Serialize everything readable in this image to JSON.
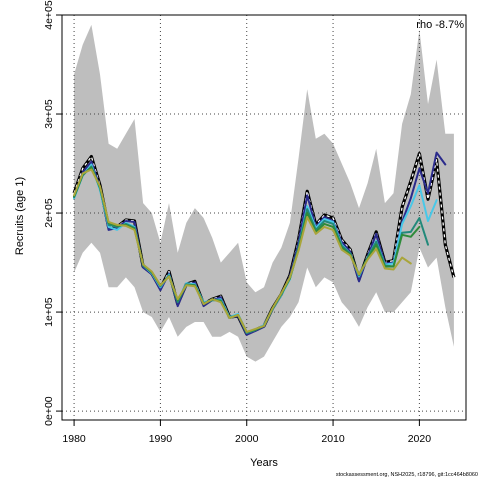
{
  "chart_data": {
    "type": "line",
    "xlabel": "Years",
    "ylabel": "Recruits (age 1)",
    "xlim": [
      1978.6,
      2025.4
    ],
    "ylim": [
      -9000,
      400000
    ],
    "x_ticks": [
      1980,
      1990,
      2000,
      2010,
      2020
    ],
    "x_tick_labels": [
      "1980",
      "1990",
      "2000",
      "2010",
      "2020"
    ],
    "y_ticks": [
      0,
      100000,
      200000,
      300000,
      400000
    ],
    "y_tick_labels": [
      "0e+00",
      "1e+05",
      "2e+05",
      "3e+05",
      "4e+05"
    ],
    "grid": "dotted",
    "annotation": "rho -8.7%",
    "footnote": "stockassessment.org, NSH2025, r18796, git:1cc464b8060",
    "confidence_band": {
      "years": [
        1980,
        1981,
        1982,
        1983,
        1984,
        1985,
        1986,
        1987,
        1988,
        1989,
        1990,
        1991,
        1992,
        1993,
        1994,
        1995,
        1996,
        1997,
        1998,
        1999,
        2000,
        2001,
        2002,
        2003,
        2004,
        2005,
        2006,
        2007,
        2008,
        2009,
        2010,
        2011,
        2012,
        2013,
        2014,
        2015,
        2016,
        2017,
        2018,
        2019,
        2020,
        2021,
        2022,
        2023,
        2024
      ],
      "upper": [
        340000,
        370000,
        390000,
        340000,
        270000,
        265000,
        280000,
        295000,
        210000,
        200000,
        170000,
        210000,
        160000,
        190000,
        205000,
        195000,
        175000,
        150000,
        160000,
        170000,
        130000,
        120000,
        125000,
        150000,
        165000,
        190000,
        255000,
        325000,
        275000,
        280000,
        270000,
        250000,
        230000,
        205000,
        230000,
        265000,
        210000,
        220000,
        290000,
        320000,
        385000,
        310000,
        355000,
        280000,
        280000
      ],
      "lower": [
        140000,
        160000,
        170000,
        160000,
        125000,
        125000,
        135000,
        125000,
        100000,
        95000,
        80000,
        95000,
        75000,
        85000,
        90000,
        90000,
        75000,
        75000,
        80000,
        75000,
        55000,
        50000,
        55000,
        70000,
        85000,
        95000,
        110000,
        145000,
        125000,
        135000,
        130000,
        110000,
        100000,
        85000,
        105000,
        120000,
        100000,
        100000,
        110000,
        120000,
        165000,
        145000,
        155000,
        105000,
        65000
      ]
    },
    "series": [
      {
        "color": "#000000",
        "style": "dashed-with-white-core",
        "role": "estimate",
        "x": [
          1980,
          1981,
          1982,
          1983,
          1984,
          1985,
          1986,
          1987,
          1988,
          1989,
          1990,
          1991,
          1992,
          1993,
          1994,
          1995,
          1996,
          1997,
          1998,
          1999,
          2000,
          2001,
          2002,
          2003,
          2004,
          2005,
          2006,
          2007,
          2008,
          2009,
          2010,
          2011,
          2012,
          2013,
          2014,
          2015,
          2016,
          2017,
          2018,
          2019,
          2020,
          2021,
          2022,
          2023,
          2024
        ],
        "values": [
          220000,
          245000,
          257000,
          228000,
          186000,
          186000,
          193000,
          192000,
          146000,
          139000,
          124000,
          141000,
          108000,
          128000,
          131000,
          108000,
          113000,
          116000,
          95000,
          96000,
          78000,
          82000,
          86000,
          104000,
          118000,
          137000,
          173000,
          222000,
          188000,
          198000,
          195000,
          173000,
          163000,
          133000,
          158000,
          181000,
          150000,
          152000,
          206000,
          232000,
          260000,
          214000,
          254000,
          168000,
          135000
        ]
      },
      {
        "color": "#2b2b8c",
        "style": "solid",
        "x": [
          1980,
          1981,
          1982,
          1983,
          1984,
          1985,
          1986,
          1987,
          1988,
          1989,
          1990,
          1991,
          1992,
          1993,
          1994,
          1995,
          1996,
          1997,
          1998,
          1999,
          2000,
          2001,
          2002,
          2003,
          2004,
          2005,
          2006,
          2007,
          2008,
          2009,
          2010,
          2011,
          2012,
          2013,
          2014,
          2015,
          2016,
          2017,
          2018,
          2019,
          2020,
          2021,
          2022,
          2023
        ],
        "values": [
          217000,
          241000,
          252000,
          226000,
          183000,
          185000,
          192000,
          191000,
          145000,
          138000,
          122000,
          139000,
          106000,
          127000,
          130000,
          106000,
          112000,
          115000,
          94000,
          96000,
          77000,
          81000,
          85000,
          103000,
          117000,
          136000,
          170000,
          218000,
          186000,
          196000,
          192000,
          171000,
          161000,
          131000,
          156000,
          179000,
          149000,
          150000,
          191000,
          215000,
          245000,
          220000,
          261000,
          249000
        ]
      },
      {
        "color": "#48c8e8",
        "style": "solid",
        "x": [
          1980,
          1981,
          1982,
          1983,
          1984,
          1985,
          1986,
          1987,
          1988,
          1989,
          1990,
          1991,
          1992,
          1993,
          1994,
          1995,
          1996,
          1997,
          1998,
          1999,
          2000,
          2001,
          2002,
          2003,
          2004,
          2005,
          2006,
          2007,
          2008,
          2009,
          2010,
          2011,
          2012,
          2013,
          2014,
          2015,
          2016,
          2017,
          2018,
          2019,
          2020,
          2021,
          2022
        ],
        "values": [
          215000,
          238000,
          249000,
          223000,
          186000,
          183000,
          190000,
          186000,
          147000,
          139000,
          125000,
          138000,
          111000,
          129000,
          128000,
          110000,
          112000,
          113000,
          95000,
          98000,
          79000,
          82000,
          87000,
          103000,
          117000,
          133000,
          165000,
          207000,
          185000,
          194000,
          191000,
          168000,
          159000,
          136000,
          155000,
          172000,
          148000,
          149000,
          189000,
          207000,
          228000,
          192000,
          213000
        ]
      },
      {
        "color": "#22897a",
        "style": "solid",
        "x": [
          1980,
          1981,
          1982,
          1983,
          1984,
          1985,
          1986,
          1987,
          1988,
          1989,
          1990,
          1991,
          1992,
          1993,
          1994,
          1995,
          1996,
          1997,
          1998,
          1999,
          2000,
          2001,
          2002,
          2003,
          2004,
          2005,
          2006,
          2007,
          2008,
          2009,
          2010,
          2011,
          2012,
          2013,
          2014,
          2015,
          2016,
          2017,
          2018,
          2019,
          2020,
          2021
        ],
        "values": [
          216000,
          238000,
          247000,
          225000,
          188000,
          186000,
          189000,
          185000,
          147000,
          140000,
          126000,
          137000,
          110000,
          128000,
          127000,
          109000,
          112000,
          112000,
          94000,
          97000,
          79000,
          82000,
          86000,
          103000,
          118000,
          134000,
          165000,
          204000,
          183000,
          192000,
          189000,
          167000,
          159000,
          137000,
          155000,
          171000,
          147000,
          146000,
          180000,
          181000,
          195000,
          168000
        ]
      },
      {
        "color": "#2e8b3a",
        "style": "solid",
        "x": [
          1980,
          1981,
          1982,
          1983,
          1984,
          1985,
          1986,
          1987,
          1988,
          1989,
          1990,
          1991,
          1992,
          1993,
          1994,
          1995,
          1996,
          1997,
          1998,
          1999,
          2000,
          2001,
          2002,
          2003,
          2004,
          2005,
          2006,
          2007,
          2008,
          2009,
          2010,
          2011,
          2012,
          2013,
          2014,
          2015,
          2016,
          2017,
          2018,
          2019,
          2020
        ],
        "values": [
          217000,
          239000,
          246000,
          226000,
          190000,
          187000,
          188000,
          184000,
          148000,
          140000,
          127000,
          136000,
          112000,
          127000,
          127000,
          108000,
          113000,
          111000,
          94000,
          97000,
          80000,
          82000,
          86000,
          104000,
          118000,
          134000,
          163000,
          200000,
          181000,
          189000,
          186000,
          165000,
          158000,
          138000,
          154000,
          168000,
          146000,
          146000,
          178000,
          176000,
          186000
        ]
      },
      {
        "color": "#a9a53a",
        "style": "solid",
        "x": [
          1980,
          1981,
          1982,
          1983,
          1984,
          1985,
          1986,
          1987,
          1988,
          1989,
          1990,
          1991,
          1992,
          1993,
          1994,
          1995,
          1996,
          1997,
          1998,
          1999,
          2000,
          2001,
          2002,
          2003,
          2004,
          2005,
          2006,
          2007,
          2008,
          2009,
          2010,
          2011,
          2012,
          2013,
          2014,
          2015,
          2016,
          2017,
          2018,
          2019
        ],
        "values": [
          218000,
          240000,
          244000,
          227000,
          191000,
          188000,
          187000,
          183000,
          148000,
          141000,
          127000,
          136000,
          113000,
          127000,
          126000,
          108000,
          113000,
          110000,
          94000,
          97000,
          80000,
          83000,
          86000,
          104000,
          119000,
          135000,
          162000,
          196000,
          179000,
          186000,
          183000,
          163000,
          157000,
          138000,
          153000,
          164000,
          144000,
          143000,
          155000,
          149000
        ]
      }
    ]
  }
}
